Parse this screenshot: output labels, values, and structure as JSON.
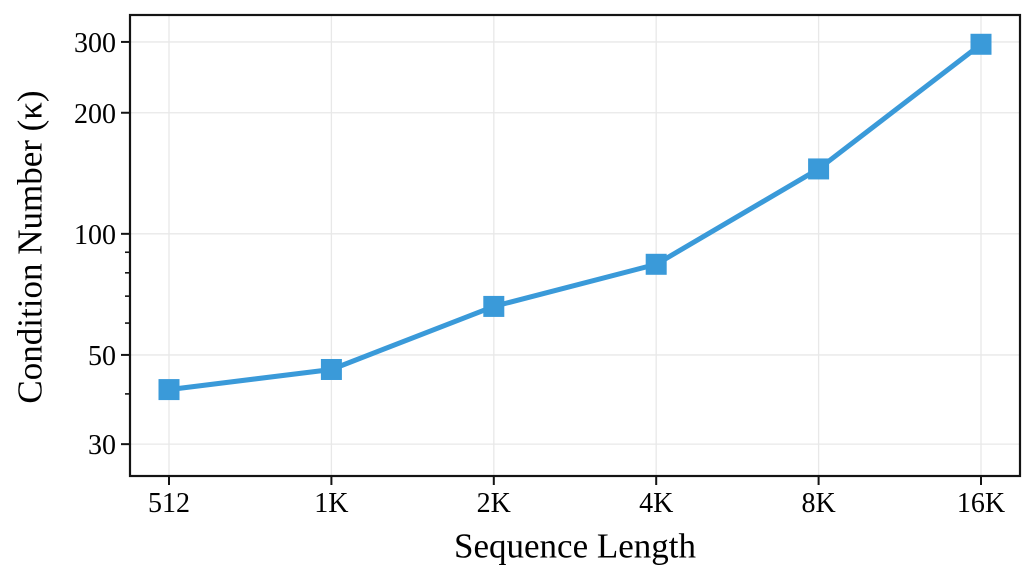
{
  "chart_data": {
    "type": "line",
    "title": "",
    "xlabel": "Sequence Length",
    "ylabel": "Condition Number (κ)",
    "categories": [
      "512",
      "1K",
      "2K",
      "4K",
      "8K",
      "16K"
    ],
    "series": [
      {
        "name": "condition-number",
        "values": [
          41,
          46,
          66,
          84,
          145,
          296
        ],
        "color": "#3A9AD9",
        "marker": "square"
      }
    ],
    "yscale": "log",
    "ylim": [
      25,
      350
    ],
    "yticks": [
      30,
      50,
      100,
      200,
      300
    ],
    "ytick_labels": [
      "30",
      "50",
      "100",
      "200",
      "300"
    ],
    "yticks_minor": [
      40,
      60,
      70,
      80,
      90
    ],
    "grid": true,
    "legend": false,
    "colors": {
      "line": "#3A9AD9",
      "grid": "#E8E8E8",
      "spine": "#141414",
      "background": "#FFFFFF",
      "text": "#000000"
    }
  }
}
